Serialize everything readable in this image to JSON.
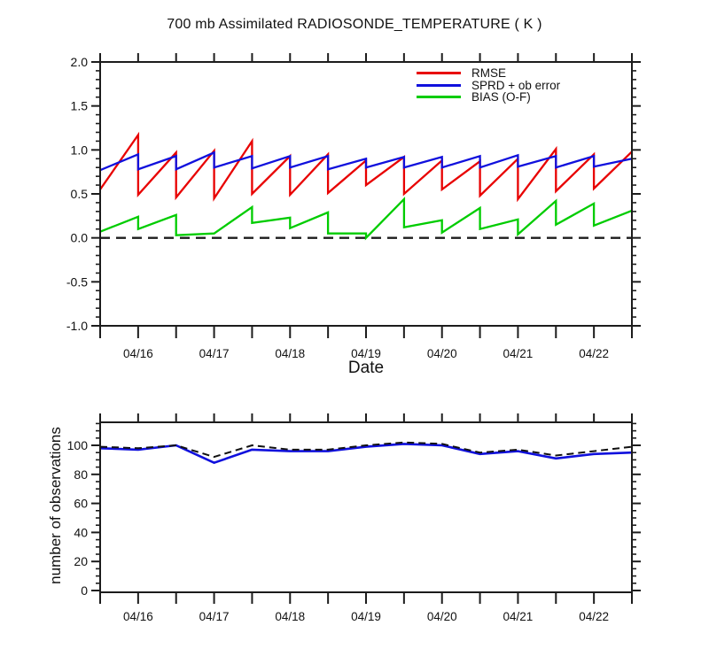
{
  "page": {
    "background": "#ffffff",
    "frame_color": "#1c1c1c"
  },
  "chart_data": [
    {
      "type": "line",
      "panel": "top",
      "title": "700 mb Assimilated RADIOSONDE_TEMPERATURE ( K )",
      "xlabel": "Date",
      "ylabel": "",
      "ylim": [
        -1.0,
        2.0
      ],
      "yticks": [
        2.0,
        1.5,
        1.0,
        0.5,
        0.0,
        -0.5,
        -1.0
      ],
      "ytick_labels": [
        "2.0",
        "1.5",
        "1.0",
        "0.5",
        "0.0",
        "-0.5",
        "-1.0"
      ],
      "y_minor_step": 0.1,
      "x_unit": "half-day steps starting 04/15 12Z",
      "x_range": [
        0,
        14
      ],
      "xticks": [
        1,
        3,
        5,
        7,
        9,
        11,
        13
      ],
      "xtick_labels": [
        "04/16",
        "04/17",
        "04/18",
        "04/19",
        "04/20",
        "04/21",
        "04/22"
      ],
      "x_minor_step": 1,
      "grid": false,
      "zero_reference_line": {
        "y": 0.0,
        "style": "dashed",
        "color": "#111111"
      },
      "legend": {
        "position": "inside-top-right",
        "entries": [
          {
            "label": "RMSE",
            "color": "#e80000"
          },
          {
            "label": "SPRD + ob error",
            "color": "#1010dd"
          },
          {
            "label": "BIAS (O-F)",
            "color": "#00cc00"
          }
        ]
      },
      "series": [
        {
          "name": "RMSE",
          "color": "#e80000",
          "points": [
            [
              0,
              0.55
            ],
            [
              1,
              1.17
            ],
            [
              1,
              0.49
            ],
            [
              2,
              0.97
            ],
            [
              2,
              0.46
            ],
            [
              3,
              0.99
            ],
            [
              3,
              0.45
            ],
            [
              4,
              1.1
            ],
            [
              4,
              0.5
            ],
            [
              5,
              0.93
            ],
            [
              5,
              0.49
            ],
            [
              6,
              0.95
            ],
            [
              6,
              0.51
            ],
            [
              7,
              0.88
            ],
            [
              7,
              0.6
            ],
            [
              8,
              0.92
            ],
            [
              8,
              0.5
            ],
            [
              9,
              0.88
            ],
            [
              9,
              0.55
            ],
            [
              10,
              0.87
            ],
            [
              10,
              0.48
            ],
            [
              11,
              0.9
            ],
            [
              11,
              0.44
            ],
            [
              12,
              1.01
            ],
            [
              12,
              0.53
            ],
            [
              13,
              0.95
            ],
            [
              13,
              0.56
            ],
            [
              14,
              0.98
            ]
          ]
        },
        {
          "name": "SPRD + ob error",
          "color": "#1010dd",
          "points": [
            [
              0,
              0.77
            ],
            [
              1,
              0.95
            ],
            [
              1,
              0.78
            ],
            [
              2,
              0.93
            ],
            [
              2,
              0.78
            ],
            [
              3,
              0.97
            ],
            [
              3,
              0.8
            ],
            [
              4,
              0.93
            ],
            [
              4,
              0.79
            ],
            [
              5,
              0.93
            ],
            [
              5,
              0.8
            ],
            [
              6,
              0.93
            ],
            [
              6,
              0.78
            ],
            [
              7,
              0.9
            ],
            [
              7,
              0.8
            ],
            [
              8,
              0.92
            ],
            [
              8,
              0.8
            ],
            [
              9,
              0.92
            ],
            [
              9,
              0.8
            ],
            [
              10,
              0.93
            ],
            [
              10,
              0.8
            ],
            [
              11,
              0.94
            ],
            [
              11,
              0.81
            ],
            [
              12,
              0.93
            ],
            [
              12,
              0.8
            ],
            [
              13,
              0.93
            ],
            [
              13,
              0.81
            ],
            [
              14,
              0.9
            ]
          ]
        },
        {
          "name": "BIAS (O-F)",
          "color": "#00cc00",
          "points": [
            [
              0,
              0.07
            ],
            [
              1,
              0.24
            ],
            [
              1,
              0.1
            ],
            [
              2,
              0.26
            ],
            [
              2,
              0.03
            ],
            [
              3,
              0.05
            ],
            [
              3,
              0.05
            ],
            [
              4,
              0.35
            ],
            [
              4,
              0.17
            ],
            [
              5,
              0.23
            ],
            [
              5,
              0.11
            ],
            [
              6,
              0.29
            ],
            [
              6,
              0.05
            ],
            [
              7,
              0.05
            ],
            [
              7,
              0.0
            ],
            [
              8,
              0.44
            ],
            [
              8,
              0.12
            ],
            [
              9,
              0.2
            ],
            [
              9,
              0.06
            ],
            [
              10,
              0.34
            ],
            [
              10,
              0.1
            ],
            [
              11,
              0.21
            ],
            [
              11,
              0.04
            ],
            [
              12,
              0.42
            ],
            [
              12,
              0.15
            ],
            [
              13,
              0.39
            ],
            [
              13,
              0.14
            ],
            [
              14,
              0.31
            ]
          ]
        }
      ]
    },
    {
      "type": "line",
      "panel": "bottom",
      "title": "",
      "xlabel": "",
      "ylabel": "number of observations",
      "ylim": [
        0,
        116
      ],
      "yticks": [
        100,
        80,
        60,
        40,
        20,
        0
      ],
      "ytick_labels": [
        "100",
        "80",
        "60",
        "40",
        "20",
        "0"
      ],
      "y_minor_step": 5,
      "x_range": [
        0,
        14
      ],
      "xticks": [
        1,
        3,
        5,
        7,
        9,
        11,
        13
      ],
      "xtick_labels": [
        "04/16",
        "04/17",
        "04/18",
        "04/19",
        "04/20",
        "04/21",
        "04/22"
      ],
      "x_minor_step": 1,
      "grid": false,
      "series": [
        {
          "name": "solid_series",
          "style": "solid",
          "color": "#1010dd",
          "x": [
            0,
            1,
            2,
            3,
            4,
            5,
            6,
            7,
            8,
            9,
            10,
            11,
            12,
            13,
            14
          ],
          "values": [
            98,
            97,
            100,
            88,
            97,
            96,
            96,
            99,
            101,
            100,
            94,
            96,
            91,
            94,
            95
          ]
        },
        {
          "name": "dashed_series",
          "style": "dashed",
          "color": "#111111",
          "x": [
            0,
            1,
            2,
            3,
            4,
            5,
            6,
            7,
            8,
            9,
            10,
            11,
            12,
            13,
            14
          ],
          "values": [
            99,
            98,
            100,
            92,
            100,
            97,
            97,
            100,
            102,
            101,
            95,
            97,
            93,
            96,
            99
          ]
        }
      ]
    }
  ]
}
